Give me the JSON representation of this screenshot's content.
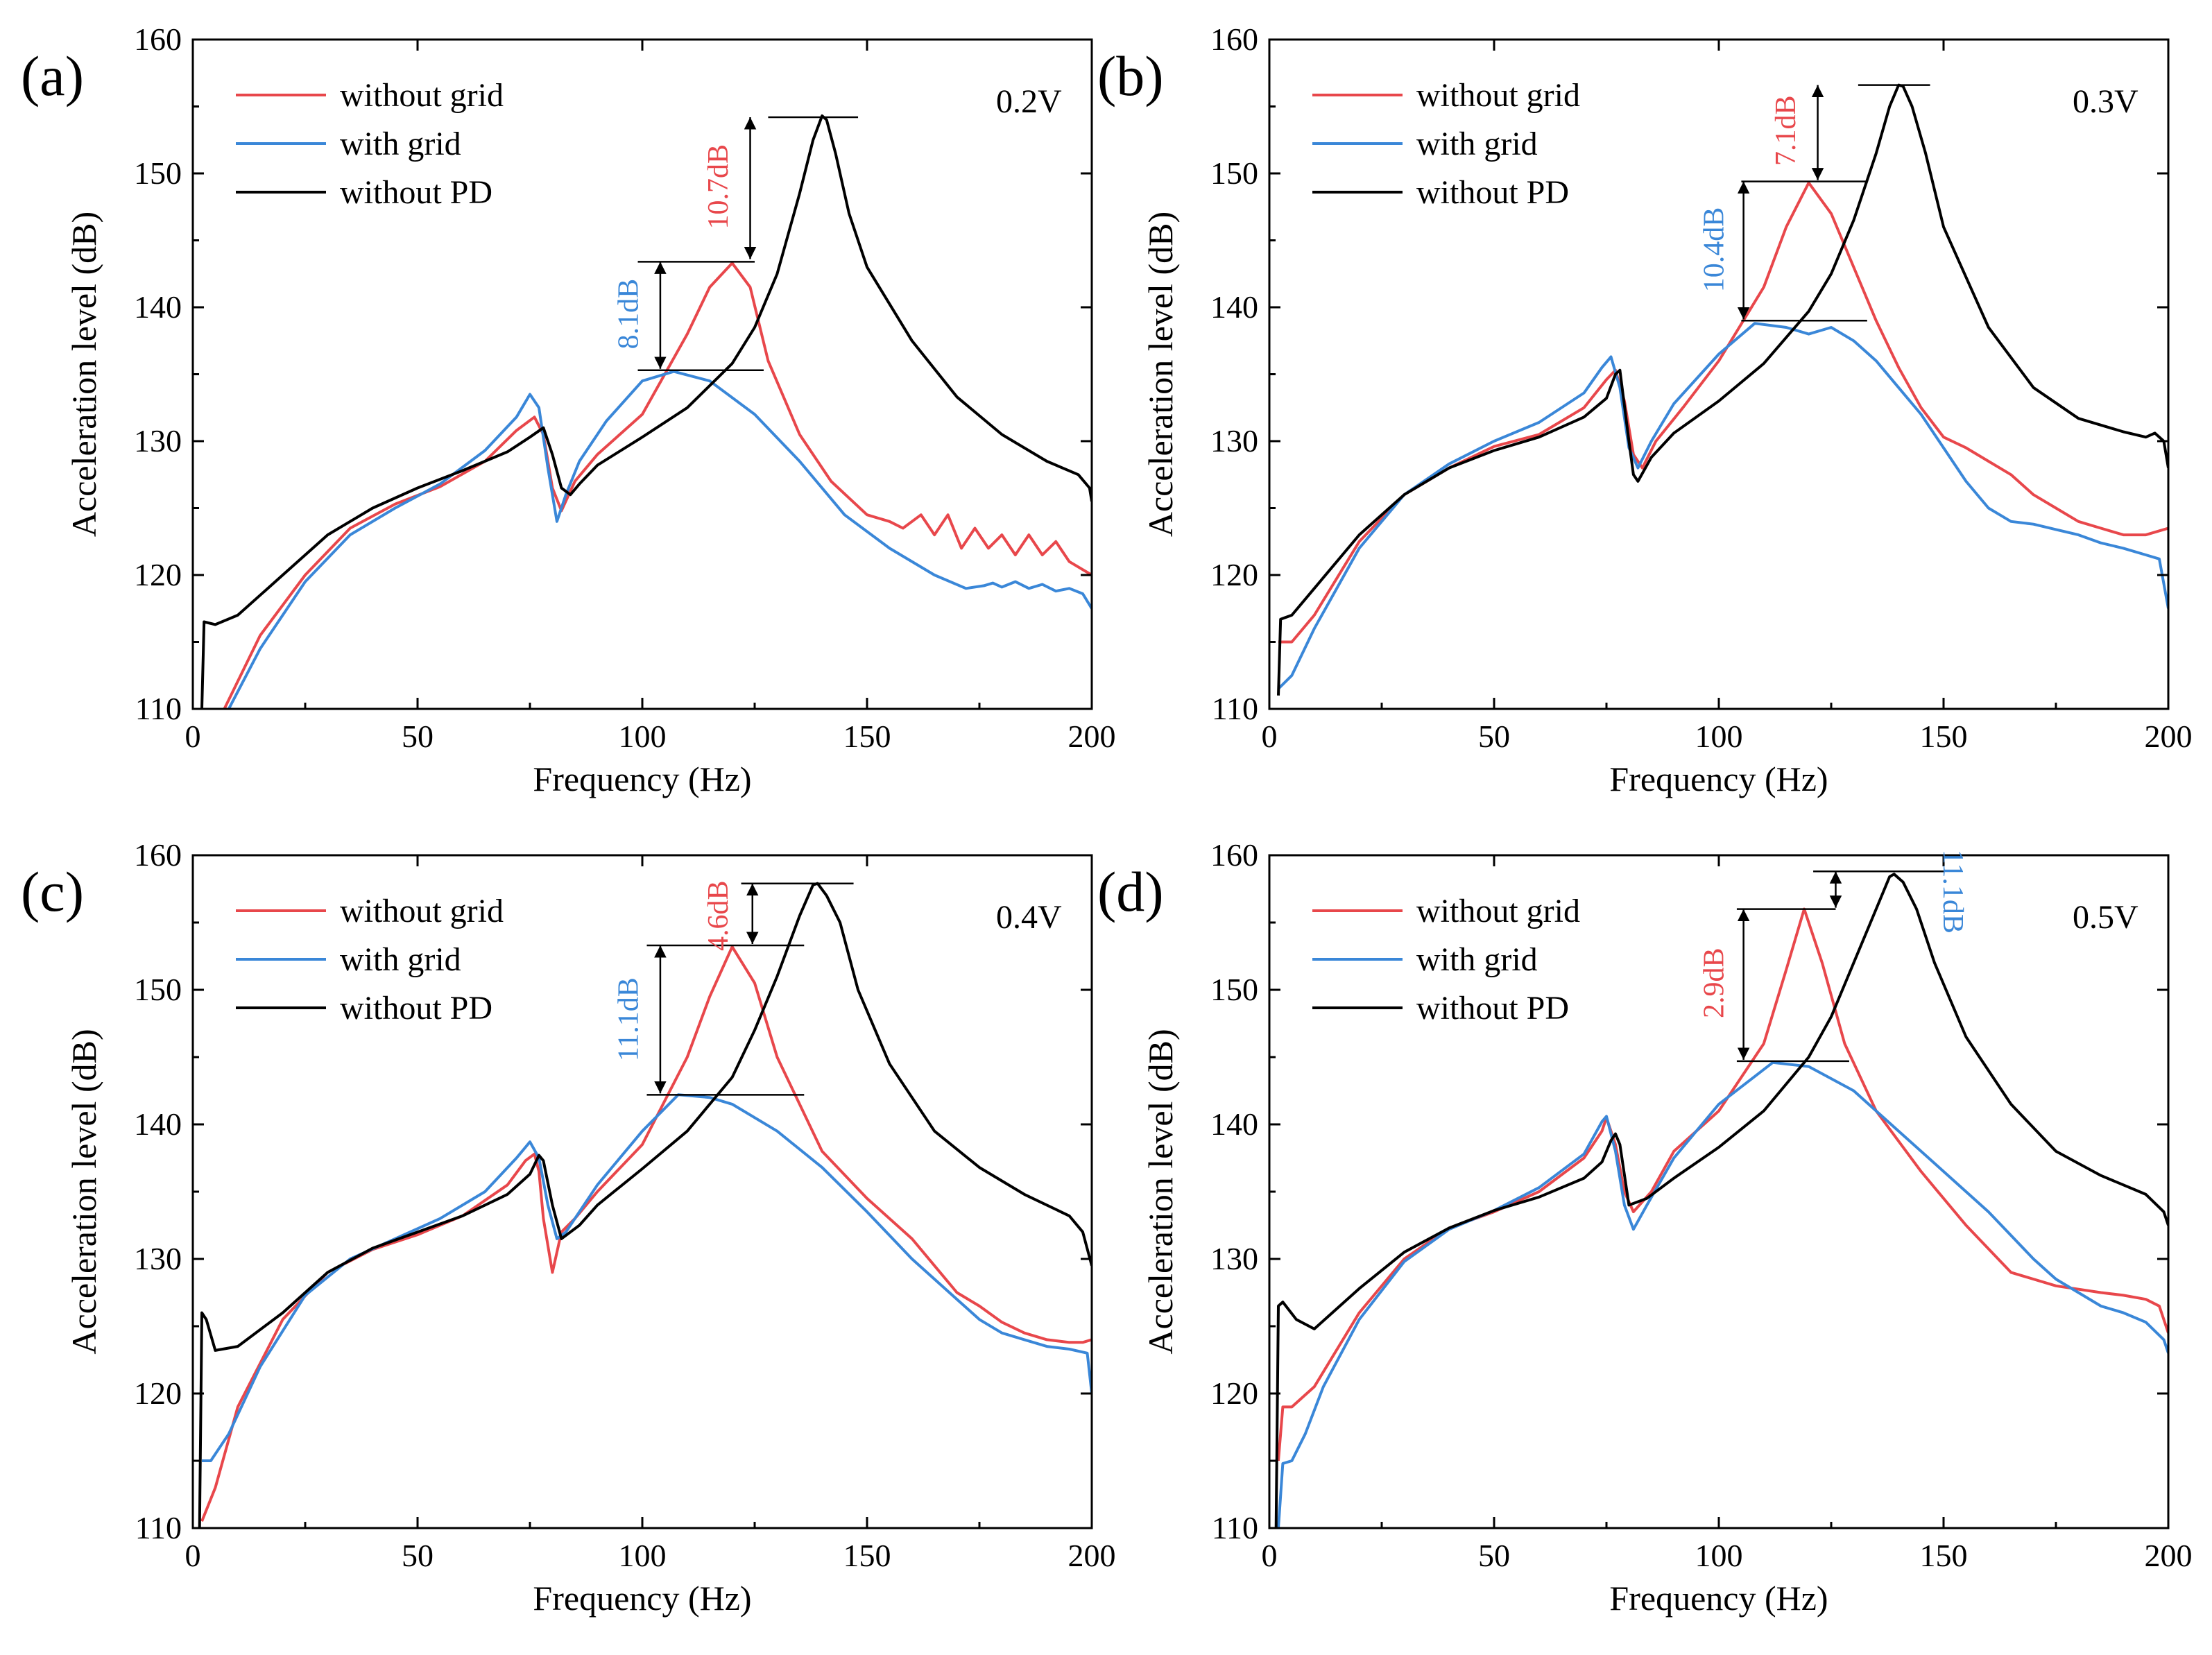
{
  "colors": {
    "without_grid": "#e8474b",
    "with_grid": "#3a87d8",
    "without_pd": "#000000"
  },
  "chart_data": [
    {
      "type": "line",
      "panel": "(a)",
      "voltage": "0.2V",
      "xlabel": "Frequency (Hz)",
      "ylabel": "Acceleration level (dB)",
      "xlim": [
        0,
        200
      ],
      "ylim": [
        110,
        160
      ],
      "xticks": [
        "0",
        "50",
        "100",
        "150",
        "200"
      ],
      "yticks": [
        "110",
        "120",
        "130",
        "140",
        "150",
        "160"
      ],
      "legend": [
        "without grid",
        "with grid",
        "without PD"
      ],
      "series": [
        {
          "name": "without grid",
          "color_key": "without_grid",
          "x": [
            7,
            15,
            25,
            35,
            45,
            55,
            65,
            72,
            76,
            78,
            80,
            82,
            85,
            90,
            100,
            110,
            115,
            120,
            124,
            128,
            135,
            142,
            150,
            155,
            158,
            162,
            165,
            168,
            171,
            174,
            177,
            180,
            183,
            186,
            189,
            192,
            195,
            200
          ],
          "y": [
            110,
            115.5,
            120,
            123.5,
            125.3,
            126.6,
            128.5,
            130.8,
            131.8,
            130.5,
            126.5,
            124.8,
            127,
            129,
            132,
            138,
            141.5,
            143.3,
            141.5,
            136,
            130.5,
            127,
            124.5,
            124,
            123.5,
            124.5,
            123,
            124.5,
            122,
            123.5,
            122,
            123,
            121.5,
            123,
            121.5,
            122.5,
            121,
            120
          ]
        },
        {
          "name": "with grid",
          "color_key": "with_grid",
          "x": [
            8,
            15,
            25,
            35,
            45,
            55,
            65,
            72,
            75,
            77,
            79,
            81,
            83,
            86,
            92,
            100,
            107,
            115,
            125,
            135,
            145,
            155,
            165,
            172,
            176,
            178,
            180,
            183,
            186,
            189,
            192,
            195,
            198,
            200
          ],
          "y": [
            110,
            114.5,
            119.5,
            123,
            125,
            126.8,
            129.3,
            131.8,
            133.5,
            132.5,
            128,
            124,
            126,
            128.5,
            131.5,
            134.5,
            135.2,
            134.5,
            132,
            128.5,
            124.5,
            122,
            120,
            119,
            119.2,
            119.4,
            119.1,
            119.5,
            119,
            119.3,
            118.8,
            119,
            118.6,
            117.5
          ]
        },
        {
          "name": "without PD",
          "color_key": "without_pd",
          "x": [
            2,
            2.5,
            5,
            10,
            20,
            30,
            40,
            50,
            60,
            70,
            75,
            78,
            80,
            82,
            84,
            86,
            90,
            100,
            110,
            120,
            125,
            130,
            135,
            138,
            140,
            141,
            143,
            146,
            150,
            160,
            170,
            180,
            190,
            197,
            199.5,
            200
          ],
          "y": [
            110,
            116.5,
            116.3,
            117,
            120,
            123,
            125,
            126.5,
            127.8,
            129.2,
            130.3,
            131,
            129,
            126.5,
            126,
            126.8,
            128.2,
            130.3,
            132.5,
            135.8,
            138.5,
            142.5,
            148.5,
            152.5,
            154.3,
            154,
            151.5,
            147,
            143,
            137.5,
            133.3,
            130.5,
            128.5,
            127.5,
            126.5,
            125.5
          ]
        }
      ],
      "annotations": [
        {
          "text": "10.7dB",
          "color_key": "without_grid"
        },
        {
          "text": "8.1dB",
          "color_key": "with_grid"
        }
      ]
    },
    {
      "type": "line",
      "panel": "(b)",
      "voltage": "0.3V",
      "xlabel": "Frequency (Hz)",
      "ylabel": "Acceleration level (dB)",
      "xlim": [
        0,
        200
      ],
      "ylim": [
        110,
        160
      ],
      "xticks": [
        "0",
        "50",
        "100",
        "150",
        "200"
      ],
      "yticks": [
        "110",
        "120",
        "130",
        "140",
        "150",
        "160"
      ],
      "legend": [
        "without grid",
        "with grid",
        "without PD"
      ],
      "series": [
        {
          "name": "without grid",
          "color_key": "without_grid",
          "x": [
            2,
            5,
            10,
            20,
            30,
            40,
            50,
            60,
            70,
            75,
            77,
            79,
            81,
            83,
            86,
            92,
            100,
            110,
            115,
            120,
            125,
            130,
            135,
            140,
            145,
            150,
            155,
            160,
            165,
            170,
            175,
            180,
            185,
            190,
            195,
            200
          ],
          "y": [
            115,
            115,
            117,
            122.5,
            126,
            128,
            129.6,
            130.5,
            132.5,
            134.6,
            135.3,
            133,
            129,
            128,
            130,
            132.5,
            136,
            141.5,
            146,
            149.3,
            147,
            143,
            139,
            135.5,
            132.5,
            130.3,
            129.5,
            128.5,
            127.5,
            126,
            125,
            124,
            123.5,
            123,
            123,
            123.5
          ]
        },
        {
          "name": "with grid",
          "color_key": "with_grid",
          "x": [
            2,
            5,
            10,
            20,
            30,
            40,
            50,
            60,
            70,
            74,
            76,
            78,
            80,
            82,
            85,
            90,
            100,
            108,
            115,
            120,
            125,
            130,
            135,
            140,
            145,
            150,
            155,
            160,
            165,
            170,
            175,
            180,
            185,
            190,
            195,
            198,
            200
          ],
          "y": [
            111.5,
            112.5,
            116,
            122,
            126,
            128.3,
            130,
            131.4,
            133.6,
            135.5,
            136.3,
            134,
            129.5,
            128,
            130,
            132.8,
            136.5,
            138.8,
            138.5,
            138,
            138.5,
            137.5,
            136,
            134,
            132,
            129.5,
            127,
            125,
            124,
            123.8,
            123.4,
            123,
            122.4,
            122,
            121.5,
            121.2,
            117.5
          ]
        },
        {
          "name": "without PD",
          "color_key": "without_pd",
          "x": [
            2,
            2.5,
            5,
            10,
            20,
            30,
            40,
            50,
            60,
            70,
            75,
            77,
            78,
            80,
            81,
            82,
            85,
            90,
            100,
            110,
            120,
            125,
            130,
            135,
            138,
            140,
            141,
            143,
            146,
            150,
            160,
            170,
            180,
            190,
            195,
            197,
            199,
            200
          ],
          "y": [
            111,
            116.7,
            117,
            119,
            123,
            126,
            128,
            129.3,
            130.3,
            131.8,
            133.2,
            135,
            135.3,
            130,
            127.5,
            127,
            128.8,
            130.6,
            133,
            135.8,
            139.7,
            142.5,
            146.5,
            151.5,
            155,
            156.6,
            156.5,
            155,
            151.5,
            146,
            138.5,
            134,
            131.7,
            130.7,
            130.3,
            130.6,
            130,
            128
          ]
        }
      ],
      "annotations": [
        {
          "text": "7.1dB",
          "color_key": "without_grid"
        },
        {
          "text": "10.4dB",
          "color_key": "with_grid"
        }
      ]
    },
    {
      "type": "line",
      "panel": "(c)",
      "voltage": "0.4V",
      "xlabel": "Frequency (Hz)",
      "ylabel": "Acceleration level (dB)",
      "xlim": [
        0,
        200
      ],
      "ylim": [
        110,
        160
      ],
      "xticks": [
        "0",
        "50",
        "100",
        "150",
        "200"
      ],
      "yticks": [
        "110",
        "120",
        "130",
        "140",
        "150",
        "160"
      ],
      "legend": [
        "without grid",
        "with grid",
        "without PD"
      ],
      "series": [
        {
          "name": "without grid",
          "color_key": "without_grid",
          "x": [
            2,
            5,
            10,
            20,
            30,
            40,
            50,
            60,
            70,
            74,
            76,
            77,
            78,
            80,
            82,
            85,
            90,
            100,
            110,
            115,
            120,
            125,
            130,
            140,
            150,
            160,
            165,
            170,
            175,
            180,
            185,
            190,
            195,
            198,
            200
          ],
          "y": [
            110.5,
            113,
            119,
            125.5,
            129,
            130.7,
            131.8,
            133.2,
            135.5,
            137.3,
            137.8,
            136.5,
            133,
            129,
            132,
            133,
            135,
            138.5,
            145,
            149.5,
            153.2,
            150.5,
            145,
            138,
            134.5,
            131.5,
            129.5,
            127.5,
            126.5,
            125.3,
            124.5,
            124,
            123.8,
            123.8,
            124
          ]
        },
        {
          "name": "with grid",
          "color_key": "with_grid",
          "x": [
            2,
            4,
            8,
            15,
            25,
            35,
            45,
            55,
            65,
            72,
            75,
            77,
            79,
            81,
            83,
            86,
            90,
            100,
            108,
            115,
            120,
            130,
            140,
            150,
            160,
            170,
            175,
            180,
            185,
            190,
            195,
            199,
            200
          ],
          "y": [
            115,
            115,
            117,
            122,
            127.3,
            130,
            131.5,
            133,
            135,
            137.5,
            138.7,
            137.5,
            134,
            131.5,
            132,
            133.5,
            135.5,
            139.5,
            142.2,
            142,
            141.5,
            139.5,
            136.8,
            133.5,
            130,
            127,
            125.5,
            124.5,
            124,
            123.5,
            123.3,
            123,
            120
          ]
        },
        {
          "name": "without PD",
          "color_key": "without_pd",
          "x": [
            1.5,
            2,
            3,
            5,
            10,
            20,
            30,
            40,
            50,
            60,
            70,
            75,
            77,
            78,
            80,
            82,
            86,
            90,
            100,
            110,
            120,
            125,
            130,
            135,
            138,
            139,
            141,
            144,
            148,
            155,
            165,
            175,
            185,
            195,
            198,
            200
          ],
          "y": [
            110,
            126,
            125.5,
            123.2,
            123.5,
            126,
            129,
            130.8,
            132,
            133.2,
            134.8,
            136.3,
            137.7,
            137.3,
            134,
            131.5,
            132.5,
            134,
            136.7,
            139.5,
            143.5,
            147,
            151,
            155.5,
            157.8,
            157.9,
            157,
            155,
            150,
            144.5,
            139.5,
            136.8,
            134.8,
            133.2,
            132,
            129.5
          ]
        }
      ],
      "annotations": [
        {
          "text": "4.6dB",
          "color_key": "without_grid"
        },
        {
          "text": "11.1dB",
          "color_key": "with_grid"
        }
      ]
    },
    {
      "type": "line",
      "panel": "(d)",
      "voltage": "0.5V",
      "xlabel": "Frequency (Hz)",
      "ylabel": "Acceleration level (dB)",
      "xlim": [
        0,
        200
      ],
      "ylim": [
        110,
        160
      ],
      "xticks": [
        "0",
        "50",
        "100",
        "150",
        "200"
      ],
      "yticks": [
        "110",
        "120",
        "130",
        "140",
        "150",
        "160"
      ],
      "legend": [
        "without grid",
        "with grid",
        "without PD"
      ],
      "series": [
        {
          "name": "without grid",
          "color_key": "without_grid",
          "x": [
            2,
            3,
            5,
            10,
            20,
            30,
            40,
            50,
            60,
            70,
            74,
            75,
            77,
            79,
            81,
            85,
            90,
            100,
            110,
            115,
            119,
            123,
            128,
            135,
            145,
            155,
            165,
            175,
            185,
            190,
            195,
            198,
            200
          ],
          "y": [
            115,
            119,
            119,
            120.5,
            126,
            130,
            132.3,
            133.5,
            135,
            137.5,
            139.5,
            140.5,
            138.5,
            135,
            133.5,
            135,
            138,
            141,
            146,
            151.5,
            156,
            152,
            146,
            141,
            136.5,
            132.5,
            129,
            128,
            127.5,
            127.3,
            127,
            126.5,
            124.5
          ]
        },
        {
          "name": "with grid",
          "color_key": "with_grid",
          "x": [
            2,
            3,
            5,
            8,
            12,
            20,
            30,
            40,
            50,
            60,
            70,
            74,
            75,
            77,
            79,
            81,
            84,
            90,
            100,
            112,
            120,
            130,
            140,
            150,
            160,
            170,
            175,
            180,
            185,
            190,
            195,
            199,
            200
          ],
          "y": [
            110,
            114.8,
            115,
            117,
            120.5,
            125.5,
            129.8,
            132.2,
            133.6,
            135.3,
            137.8,
            140.2,
            140.6,
            138,
            134,
            132.2,
            134,
            137.5,
            141.5,
            144.6,
            144.3,
            142.5,
            139.5,
            136.5,
            133.5,
            130,
            128.5,
            127.5,
            126.5,
            126,
            125.3,
            124,
            123
          ]
        },
        {
          "name": "without PD",
          "color_key": "without_pd",
          "x": [
            1.5,
            2,
            3,
            6,
            10,
            20,
            30,
            40,
            50,
            60,
            70,
            74,
            76,
            77,
            78,
            80,
            84,
            90,
            100,
            110,
            120,
            125,
            130,
            135,
            138,
            139,
            141,
            144,
            148,
            155,
            165,
            175,
            185,
            195,
            199,
            200
          ],
          "y": [
            110,
            126.5,
            126.8,
            125.5,
            124.8,
            127.8,
            130.5,
            132.3,
            133.6,
            134.6,
            136,
            137.2,
            138.8,
            139.3,
            138.5,
            134,
            134.5,
            136,
            138.3,
            141,
            145,
            148,
            152,
            156,
            158.4,
            158.6,
            158,
            156,
            152,
            146.5,
            141.5,
            138,
            136.2,
            134.8,
            133.5,
            132.5
          ]
        }
      ],
      "annotations": [
        {
          "text": "11.1dB",
          "color_key": "with_grid"
        },
        {
          "text": "2.9dB",
          "color_key": "without_grid"
        }
      ]
    }
  ]
}
